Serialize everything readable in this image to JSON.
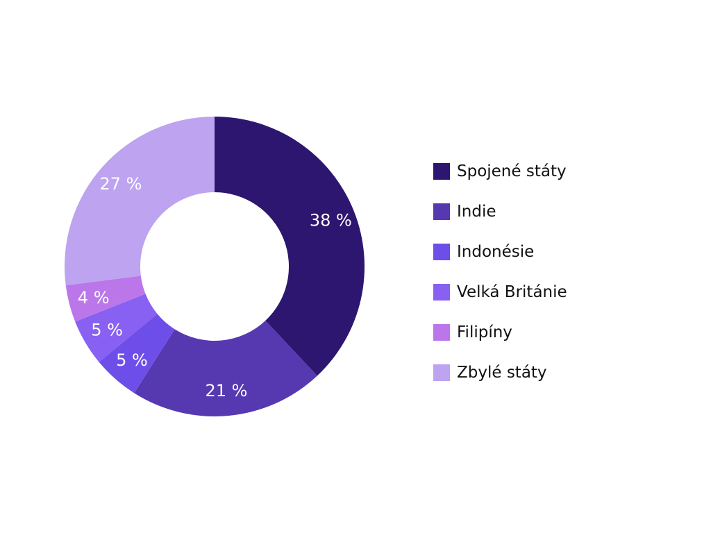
{
  "chart_data": {
    "type": "pie",
    "variant": "donut",
    "title": "",
    "categories": [
      "Spojené státy",
      "Indie",
      "Indonésie",
      "Velká Británie",
      "Filipíny",
      "Zbylé státy"
    ],
    "values": [
      38,
      21,
      5,
      5,
      4,
      27
    ],
    "value_labels": [
      "38 %",
      "21 %",
      "5 %",
      "5 %",
      "4 %",
      "27 %"
    ],
    "colors": [
      "#2d1670",
      "#5639b0",
      "#6e4ee9",
      "#8860f2",
      "#bb77ea",
      "#bda3f0"
    ],
    "legend_position": "right",
    "grid": false
  }
}
